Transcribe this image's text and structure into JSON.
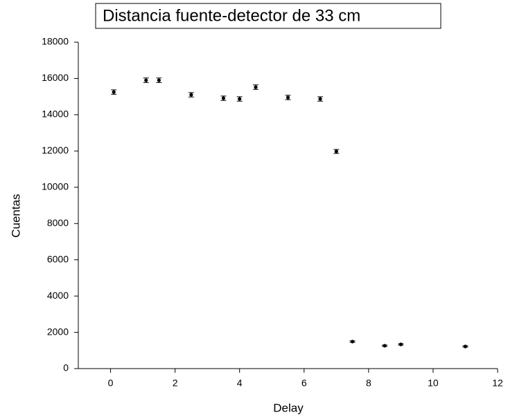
{
  "chart_data": {
    "type": "scatter",
    "title": "Distancia fuente-detector de 33 cm",
    "x_label": "Delay",
    "y_label": "Cuentas",
    "series": [
      {
        "name": "Cuentas",
        "color": "#000000",
        "x": [
          0.1,
          1.1,
          1.5,
          2.5,
          3.5,
          4,
          4.5,
          5.5,
          6.5,
          7,
          7.5,
          8.5,
          9,
          11
        ],
        "values": [
          15250,
          15900,
          15900,
          15100,
          14910,
          14870,
          15520,
          14950,
          14870,
          11975,
          1490,
          1260,
          1335,
          1220
        ],
        "errors": [
          125,
          126,
          126,
          123,
          122,
          122,
          125,
          122,
          122,
          110,
          39,
          36,
          37,
          35
        ]
      }
    ],
    "xlim": [
      -1,
      12
    ],
    "xticks": [
      0,
      2,
      4,
      6,
      8,
      10,
      12
    ],
    "ylim": [
      0,
      18000
    ],
    "yticks": [
      0,
      2000,
      4000,
      6000,
      8000,
      10000,
      12000,
      14000,
      16000,
      18000
    ],
    "grid": false
  }
}
